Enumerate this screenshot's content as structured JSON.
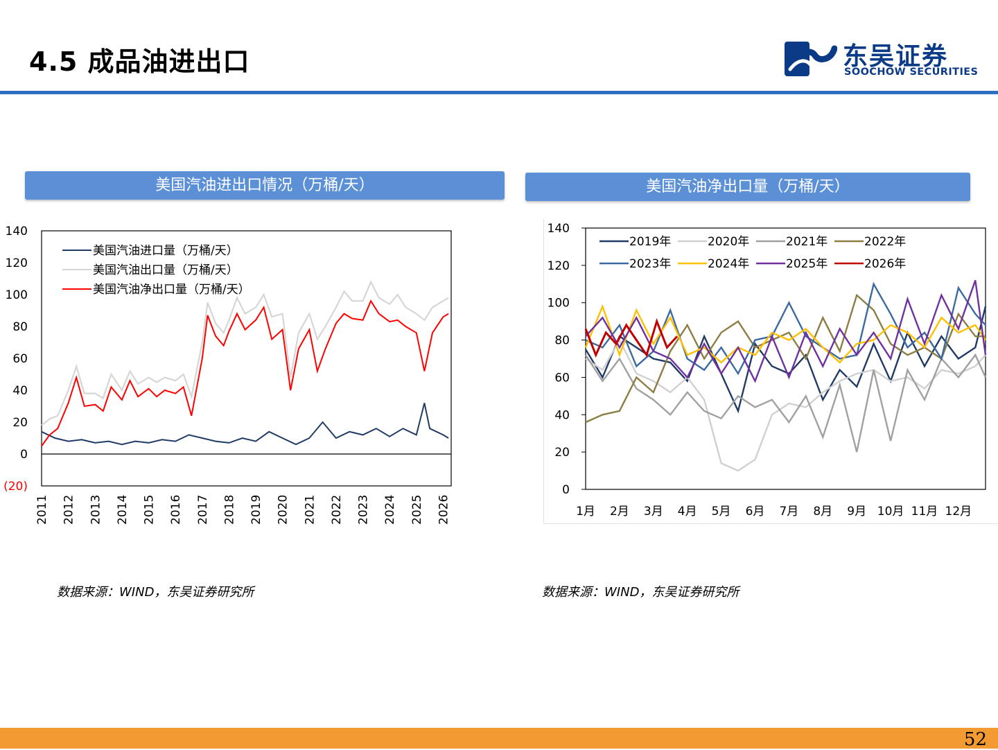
{
  "header": {
    "title": "4.5 成品油进出口"
  },
  "logo": {
    "name_cn": "东吴证券",
    "name_en": "SOOCHOW SECURITIES",
    "icon": "soochow-logo-icon",
    "color": "#0b3a86"
  },
  "page_number": "52",
  "panels": [
    {
      "heading": "美国汽油进出口情况（万桶/天）",
      "source": "数据来源：WIND，东吴证券研究所"
    },
    {
      "heading": "美国汽油净出口量（万桶/天）",
      "source": "数据来源：WIND，东吴证券研究所"
    }
  ],
  "chart_data": [
    {
      "type": "line",
      "x_start": 2011,
      "x_end": 2026.3,
      "ylim": [
        -20,
        140
      ],
      "yticks": [
        "(20)",
        "0",
        "20",
        "40",
        "60",
        "80",
        "100",
        "120",
        "140"
      ],
      "xticks": [
        "2011",
        "2012",
        "2013",
        "2014",
        "2015",
        "2016",
        "2017",
        "2018",
        "2019",
        "2020",
        "2021",
        "2022",
        "2023",
        "2024",
        "2025",
        "2026"
      ],
      "legend": "top-left",
      "series": [
        {
          "name": "美国汽油进口量（万桶/天）",
          "color": "#1f3a66",
          "x": [
            2011,
            2011.5,
            2012,
            2012.5,
            2013,
            2013.5,
            2014,
            2014.5,
            2015,
            2015.5,
            2016,
            2016.5,
            2017,
            2017.5,
            2018,
            2018.5,
            2019,
            2019.5,
            2020,
            2020.5,
            2021,
            2021.5,
            2022,
            2022.5,
            2023,
            2023.5,
            2024,
            2024.5,
            2025,
            2025.3,
            2025.5,
            2026,
            2026.2
          ],
          "y": [
            14,
            10,
            8,
            9,
            7,
            8,
            6,
            8,
            7,
            9,
            8,
            12,
            10,
            8,
            7,
            10,
            8,
            14,
            10,
            6,
            10,
            20,
            10,
            14,
            12,
            16,
            11,
            16,
            12,
            32,
            16,
            12,
            10
          ]
        },
        {
          "name": "美国汽油出口量（万桶/天）",
          "color": "#d6d6d6",
          "x": [
            2011,
            2011.3,
            2011.6,
            2012,
            2012.3,
            2012.6,
            2013,
            2013.3,
            2013.6,
            2014,
            2014.3,
            2014.6,
            2015,
            2015.3,
            2015.6,
            2016,
            2016.3,
            2016.6,
            2017,
            2017.2,
            2017.5,
            2017.8,
            2018,
            2018.3,
            2018.6,
            2019,
            2019.3,
            2019.6,
            2020,
            2020.3,
            2020.6,
            2021,
            2021.3,
            2021.6,
            2022,
            2022.3,
            2022.6,
            2023,
            2023.3,
            2023.6,
            2024,
            2024.3,
            2024.6,
            2025,
            2025.3,
            2025.6,
            2026,
            2026.2
          ],
          "y": [
            18,
            22,
            24,
            40,
            55,
            38,
            38,
            35,
            50,
            40,
            52,
            44,
            48,
            45,
            48,
            46,
            50,
            36,
            70,
            95,
            82,
            76,
            84,
            98,
            88,
            92,
            100,
            86,
            88,
            48,
            76,
            88,
            72,
            80,
            92,
            102,
            96,
            96,
            108,
            98,
            94,
            100,
            92,
            88,
            84,
            92,
            96,
            98
          ]
        },
        {
          "name": "美国汽油净出口量（万桶/天）",
          "color": "#ff0000",
          "x": [
            2011,
            2011.3,
            2011.6,
            2012,
            2012.3,
            2012.6,
            2013,
            2013.3,
            2013.6,
            2014,
            2014.3,
            2014.6,
            2015,
            2015.3,
            2015.6,
            2016,
            2016.3,
            2016.6,
            2017,
            2017.2,
            2017.5,
            2017.8,
            2018,
            2018.3,
            2018.6,
            2019,
            2019.3,
            2019.6,
            2020,
            2020.3,
            2020.6,
            2021,
            2021.3,
            2021.6,
            2022,
            2022.3,
            2022.6,
            2023,
            2023.3,
            2023.6,
            2024,
            2024.3,
            2024.6,
            2025,
            2025.3,
            2025.6,
            2026,
            2026.2
          ],
          "y": [
            5,
            12,
            16,
            32,
            48,
            30,
            31,
            27,
            42,
            34,
            46,
            36,
            41,
            36,
            40,
            38,
            42,
            24,
            60,
            87,
            74,
            68,
            77,
            88,
            78,
            84,
            92,
            72,
            78,
            40,
            66,
            78,
            52,
            66,
            82,
            88,
            85,
            84,
            96,
            88,
            83,
            84,
            80,
            76,
            52,
            76,
            86,
            88
          ]
        }
      ]
    },
    {
      "type": "line",
      "ylim": [
        0,
        140
      ],
      "yticks": [
        "0",
        "20",
        "40",
        "60",
        "80",
        "100",
        "120",
        "140"
      ],
      "categories": [
        "1月",
        "2月",
        "3月",
        "4月",
        "5月",
        "6月",
        "7月",
        "8月",
        "9月",
        "10月",
        "11月",
        "12月"
      ],
      "x_domain": [
        1,
        12.8
      ],
      "legend": "top-left",
      "series": [
        {
          "name": "2019年",
          "color": "#1f3a66",
          "x": [
            1,
            1.5,
            2,
            2.5,
            3,
            3.5,
            4,
            4.5,
            5,
            5.5,
            6,
            6.5,
            7,
            7.5,
            8,
            8.5,
            9,
            9.5,
            10,
            10.5,
            11,
            11.5,
            12,
            12.5,
            12.8
          ],
          "y": [
            75,
            60,
            82,
            76,
            70,
            68,
            58,
            82,
            62,
            42,
            78,
            66,
            62,
            72,
            48,
            64,
            55,
            78,
            58,
            84,
            66,
            82,
            70,
            76,
            98
          ]
        },
        {
          "name": "2020年",
          "color": "#d0d0d0",
          "x": [
            1,
            1.5,
            2,
            2.5,
            3,
            3.5,
            4,
            4.5,
            5,
            5.5,
            6,
            6.5,
            7,
            7.5,
            8,
            8.5,
            9,
            9.5,
            10,
            10.5,
            11,
            11.5,
            12,
            12.5,
            12.8
          ],
          "y": [
            70,
            64,
            80,
            62,
            58,
            52,
            60,
            48,
            14,
            10,
            16,
            40,
            46,
            44,
            52,
            58,
            62,
            64,
            58,
            60,
            54,
            64,
            62,
            66,
            72
          ]
        },
        {
          "name": "2021年",
          "color": "#a0a0a0",
          "x": [
            1,
            1.5,
            2,
            2.5,
            3,
            3.5,
            4,
            4.5,
            5,
            5.5,
            6,
            6.5,
            7,
            7.5,
            8,
            8.5,
            9,
            9.5,
            10,
            10.5,
            11,
            11.5,
            12,
            12.5,
            12.8
          ],
          "y": [
            72,
            58,
            70,
            54,
            48,
            40,
            52,
            42,
            38,
            50,
            44,
            48,
            36,
            50,
            28,
            56,
            20,
            64,
            26,
            64,
            48,
            70,
            60,
            72,
            60
          ]
        },
        {
          "name": "2022年",
          "color": "#8c7d45",
          "x": [
            1,
            1.5,
            2,
            2.5,
            3,
            3.5,
            4,
            4.5,
            5,
            5.5,
            6,
            6.5,
            7,
            7.5,
            8,
            8.5,
            9,
            9.5,
            10,
            10.5,
            11,
            11.5,
            12,
            12.5,
            12.8
          ],
          "y": [
            36,
            40,
            42,
            60,
            52,
            74,
            88,
            70,
            84,
            90,
            76,
            80,
            84,
            70,
            92,
            74,
            104,
            96,
            78,
            72,
            76,
            70,
            94,
            82,
            82
          ]
        },
        {
          "name": "2023年",
          "color": "#3b6aa0",
          "x": [
            1,
            1.5,
            2,
            2.5,
            3,
            3.5,
            4,
            4.5,
            5,
            5.5,
            6,
            6.5,
            7,
            7.5,
            8,
            8.5,
            9,
            9.5,
            10,
            10.5,
            11,
            11.5,
            12,
            12.5,
            12.8
          ],
          "y": [
            80,
            76,
            88,
            66,
            74,
            96,
            70,
            64,
            76,
            62,
            80,
            82,
            100,
            82,
            76,
            70,
            72,
            110,
            94,
            76,
            84,
            70,
            108,
            94,
            88
          ]
        },
        {
          "name": "2024年",
          "color": "#ffc000",
          "x": [
            1,
            1.5,
            2,
            2.5,
            3,
            3.5,
            4,
            4.5,
            5,
            5.5,
            6,
            6.5,
            7,
            7.5,
            8,
            8.5,
            9,
            9.5,
            10,
            10.5,
            11,
            11.5,
            12,
            12.5,
            12.8
          ],
          "y": [
            76,
            98,
            72,
            96,
            78,
            92,
            72,
            76,
            68,
            76,
            72,
            84,
            80,
            86,
            76,
            68,
            78,
            80,
            88,
            84,
            76,
            92,
            84,
            88,
            80
          ]
        },
        {
          "name": "2025年",
          "color": "#7030a0",
          "x": [
            1,
            1.5,
            2,
            2.5,
            3,
            3.5,
            4,
            4.5,
            5,
            5.5,
            6,
            6.5,
            7,
            7.5,
            8,
            8.5,
            9,
            9.5,
            10,
            10.5,
            11,
            11.5,
            12,
            12.5,
            12.8
          ],
          "y": [
            82,
            92,
            76,
            92,
            74,
            70,
            60,
            78,
            62,
            76,
            58,
            82,
            60,
            84,
            66,
            86,
            72,
            84,
            70,
            102,
            78,
            104,
            86,
            112,
            72
          ]
        },
        {
          "name": "2026年",
          "color": "#c00000",
          "x": [
            1,
            1.3,
            1.6,
            1.9,
            2.2,
            2.5,
            2.8,
            3.1,
            3.4,
            3.7
          ],
          "y": [
            86,
            72,
            84,
            78,
            88,
            80,
            72,
            90,
            76,
            82
          ]
        }
      ]
    }
  ]
}
